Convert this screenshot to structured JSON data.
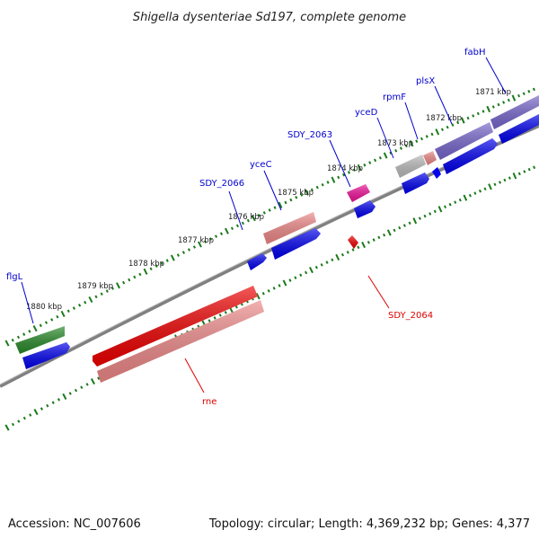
{
  "title": "Shigella dysenteriae Sd197, complete genome",
  "footer": {
    "accession": "Accession: NC_007606",
    "stats": "Topology: circular; Length: 4,369,232 bp; Genes: 4,377"
  },
  "kbp_labels": [
    "1880 kbp",
    "1879 kbp",
    "1878 kbp",
    "1877 kbp",
    "1876 kbp",
    "1875 kbp",
    "1874 kbp",
    "1873 kbp",
    "1872 kbp",
    "1871 kbp"
  ],
  "gene_labels": {
    "flgL": "flgL",
    "SDY_2066": "SDY_2066",
    "yceC": "yceC",
    "SDY_2063": "SDY_2063",
    "yceD": "yceD",
    "rpmF": "rpmF",
    "plsX": "plsX",
    "fabH": "fabH",
    "rne": "rne",
    "SDY_2064": "SDY_2064"
  },
  "colors": {
    "backbone": "#808080",
    "ticks": "#1a7a1a",
    "label_upper": "#0000cc",
    "label_lower": "#dd0000",
    "cds": "#0000ee",
    "flgL": "#2a8a2a",
    "rne_gene": "#ee0000",
    "rne_cds": "#ee8888",
    "yceC": "#ee8888",
    "SDY_2063": "#ee1199",
    "yceD": "#bbbbbb",
    "rpmF": "#ee8888",
    "plsX_fabH": "#7766cc",
    "SDY_2064": "#ee0000"
  }
}
